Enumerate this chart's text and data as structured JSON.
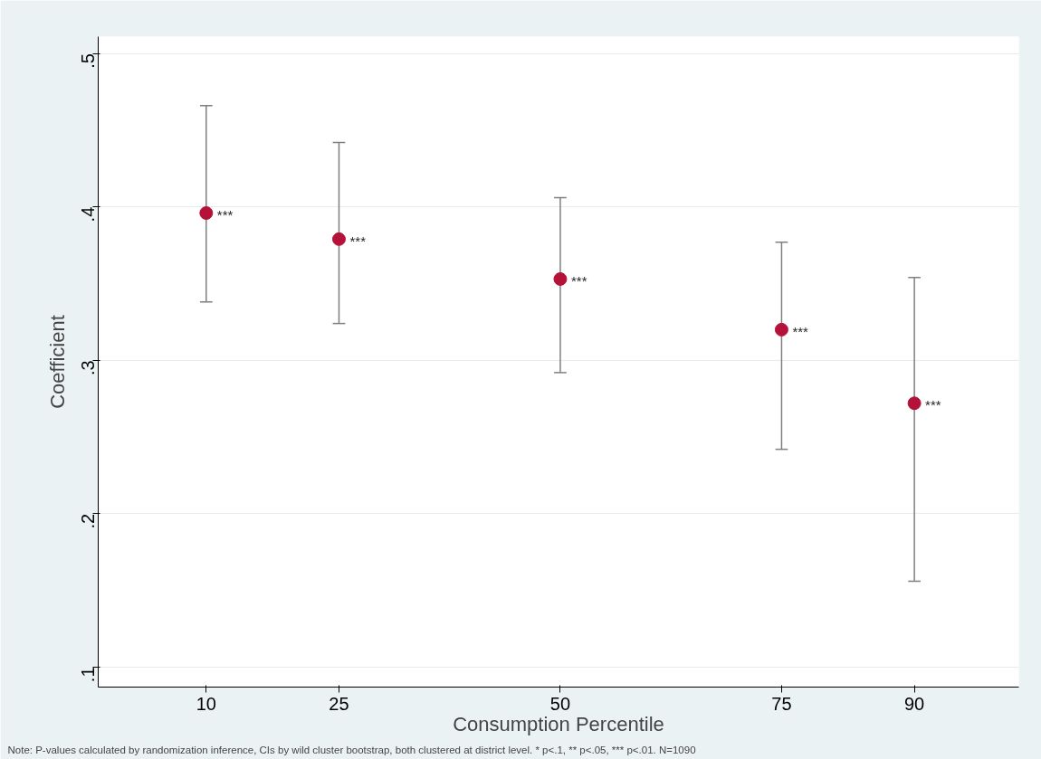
{
  "chart_data": {
    "type": "scatter",
    "xlabel": "Consumption Percentile",
    "ylabel": "Coefficient",
    "x": [
      10,
      25,
      50,
      75,
      90
    ],
    "series": [
      {
        "color": "#b5123a",
        "values": [
          0.396,
          0.379,
          0.353,
          0.32,
          0.272
        ],
        "errors": [
          [
            0.338,
            0.466
          ],
          [
            0.324,
            0.442
          ],
          [
            0.292,
            0.406
          ],
          [
            0.242,
            0.377
          ],
          [
            0.156,
            0.354
          ]
        ]
      }
    ],
    "xlim": [
      -2.2,
      101.8
    ],
    "ylim": [
      0.087,
      0.511
    ],
    "xticks": [
      10,
      25,
      50,
      75,
      90
    ],
    "yticks": [
      {
        "value": 0.1,
        "label": ".1"
      },
      {
        "value": 0.2,
        "label": ".2"
      },
      {
        "value": 0.3,
        "label": ".3"
      },
      {
        "value": 0.4,
        "label": ".4"
      },
      {
        "value": 0.5,
        "label": ".5"
      }
    ],
    "grid": "y",
    "marker": "circle",
    "annotations": [
      {
        "text": "***",
        "x": 10,
        "y": 0.396
      },
      {
        "text": "***",
        "x": 25,
        "y": 0.379
      },
      {
        "text": "***",
        "x": 50,
        "y": 0.353
      },
      {
        "text": "***",
        "x": 75,
        "y": 0.32
      },
      {
        "text": "***",
        "x": 90,
        "y": 0.272
      },
      "Note: P-values calculated by randomization inference, CIs by wild cluster bootstrap, both clustered at district level. * p<.1, ** p<.05, *** p<.01. N=1090"
    ]
  }
}
